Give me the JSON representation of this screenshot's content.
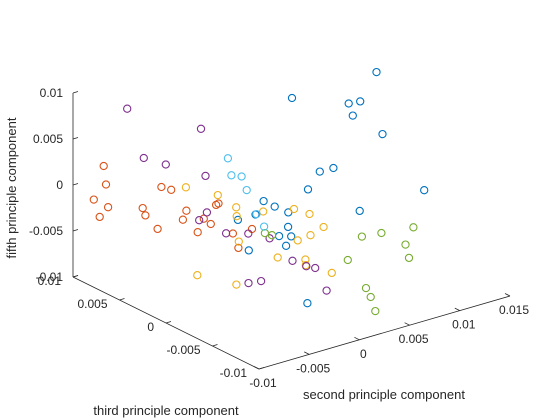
{
  "chart_data": {
    "type": "scatter",
    "projection": "3d",
    "grid": false,
    "xlabel": "second principle component",
    "ylabel": "third principle component",
    "zlabel": "fifth principle component",
    "xlim": [
      -0.01,
      0.015
    ],
    "ylim": [
      -0.01,
      0.01
    ],
    "zlim": [
      -0.01,
      0.01
    ],
    "xticks": [
      -0.01,
      -0.005,
      0,
      0.005,
      0.01,
      0.015
    ],
    "xtick_labels": [
      "-0.01",
      "-0.005",
      "0",
      "0.005",
      "0.01",
      "0.015"
    ],
    "yticks": [
      -0.01,
      -0.005,
      0,
      0.005,
      0.01
    ],
    "ytick_labels": [
      "-0.01",
      "-0.005",
      "0",
      "0.005",
      "0.01"
    ],
    "zticks": [
      -0.01,
      -0.005,
      0,
      0.005,
      0.01
    ],
    "ztick_labels": [
      "-0.01",
      "-0.005",
      "0",
      "0.005",
      "0.01"
    ],
    "marker": "open-circle",
    "colors": [
      "#0072BD",
      "#D95319",
      "#EDB120",
      "#7E2F8E",
      "#77AC30",
      "#4DBEEE"
    ],
    "series": [
      {
        "color": "#0072BD",
        "points": [
          {
            "x": 0.0118,
            "y": 0.0009,
            "z": 0.0099
          },
          {
            "x": 0.0073,
            "y": -0.0022,
            "z": 0.0097
          },
          {
            "x": 0.0069,
            "y": -0.0014,
            "z": 0.0092
          },
          {
            "x": 0.0045,
            "y": 0.0021,
            "z": 0.0088
          },
          {
            "x": 0.0062,
            "y": -0.0026,
            "z": 0.0087
          },
          {
            "x": 0.0098,
            "y": -0.0019,
            "z": 0.0052
          },
          {
            "x": 0.0031,
            "y": -0.0024,
            "z": 0.0035
          },
          {
            "x": 0.0051,
            "y": -0.0017,
            "z": 0.0029
          },
          {
            "x": 0.0022,
            "y": -0.0021,
            "z": 0.0017
          },
          {
            "x": 0.0109,
            "y": -0.0052,
            "z": 0.0004
          },
          {
            "x": 0.0054,
            "y": -0.0042,
            "z": -0.0006
          },
          {
            "x": 0.0012,
            "y": 0.0016,
            "z": -0.0011
          },
          {
            "x": 0.0012,
            "y": 0.0004,
            "z": -0.0011
          },
          {
            "x": 0.0019,
            "y": -0.0003,
            "z": -0.0016
          },
          {
            "x": -0.0009,
            "y": 0.0002,
            "z": -0.0012
          },
          {
            "x": 0.0004,
            "y": -0.0019,
            "z": -0.0019
          },
          {
            "x": -0.0021,
            "y": 0.0008,
            "z": -0.0017
          },
          {
            "x": -0.0004,
            "y": -0.0018,
            "z": -0.0027
          },
          {
            "x": 0.0009,
            "y": -0.0017,
            "z": -0.0032
          },
          {
            "x": 0.0002,
            "y": -0.0019,
            "z": -0.0039
          },
          {
            "x": -0.0012,
            "y": 0.0006,
            "z": -0.0052
          },
          {
            "x": 0.0001,
            "y": -0.0043,
            "z": -0.0089
          }
        ]
      },
      {
        "color": "#D95319",
        "points": [
          {
            "x": -0.0087,
            "y": 0.0081,
            "z": 0.0026
          },
          {
            "x": -0.0081,
            "y": 0.0085,
            "z": 0.0002
          },
          {
            "x": -0.0061,
            "y": 0.0047,
            "z": 0.0012
          },
          {
            "x": -0.0055,
            "y": 0.0043,
            "z": 0.0009
          },
          {
            "x": -0.0095,
            "y": 0.0083,
            "z": -0.0009
          },
          {
            "x": -0.0091,
            "y": 0.0072,
            "z": -0.0013
          },
          {
            "x": -0.0091,
            "y": 0.0081,
            "z": -0.0028
          },
          {
            "x": -0.0075,
            "y": 0.0052,
            "z": -0.0009
          },
          {
            "x": -0.0064,
            "y": 0.0061,
            "z": -0.0025
          },
          {
            "x": -0.0063,
            "y": 0.0049,
            "z": -0.0034
          },
          {
            "x": -0.0051,
            "y": 0.0031,
            "z": -0.0009
          },
          {
            "x": -0.0047,
            "y": 0.0039,
            "z": -0.0024
          },
          {
            "x": -0.0042,
            "y": 0.0022,
            "z": -0.0016
          },
          {
            "x": -0.0035,
            "y": 0.0022,
            "z": -0.0024
          },
          {
            "x": -0.0031,
            "y": 0.0018,
            "z": -0.0001
          },
          {
            "x": -0.0039,
            "y": 0.0012,
            "z": 0.0003
          },
          {
            "x": -0.0025,
            "y": 0.0009,
            "z": -0.0031
          },
          {
            "x": -0.0027,
            "y": 0.0001,
            "z": -0.0042
          },
          {
            "x": -0.0049,
            "y": 0.0021,
            "z": -0.0028
          },
          {
            "x": -0.0019,
            "y": -0.0005,
            "z": -0.0021
          }
        ]
      },
      {
        "color": "#EDB120",
        "points": [
          {
            "x": -0.0045,
            "y": 0.0038,
            "z": 0.0011
          },
          {
            "x": -0.0029,
            "y": 0.0021,
            "z": 0.0006
          },
          {
            "x": -0.0024,
            "y": 0.0006,
            "z": -0.0011
          },
          {
            "x": -0.0019,
            "y": 0.0012,
            "z": -0.0006
          },
          {
            "x": -0.0005,
            "y": -0.0002,
            "z": -0.0008
          },
          {
            "x": 0.0021,
            "y": -0.0007,
            "z": -0.0011
          },
          {
            "x": 0.0029,
            "y": -0.0015,
            "z": -0.0015
          },
          {
            "x": 0.0018,
            "y": -0.0028,
            "z": -0.0028
          },
          {
            "x": 0.0032,
            "y": -0.0027,
            "z": -0.0024
          },
          {
            "x": 0.0008,
            "y": -0.0025,
            "z": -0.0032
          },
          {
            "x": 0.0012,
            "y": -0.0029,
            "z": -0.0052
          },
          {
            "x": -0.0011,
            "y": -0.0024,
            "z": -0.0045
          },
          {
            "x": 0.0005,
            "y": -0.0037,
            "z": -0.0052
          },
          {
            "x": -0.0034,
            "y": -0.0007,
            "z": -0.0029
          },
          {
            "x": -0.0041,
            "y": -0.0012,
            "z": -0.0071
          },
          {
            "x": 0.0029,
            "y": -0.0039,
            "z": -0.0067
          },
          {
            "x": -0.0042,
            "y": 0.0029,
            "z": -0.0081
          }
        ]
      },
      {
        "color": "#7E2F8E",
        "points": [
          {
            "x": -0.0072,
            "y": 0.0072,
            "z": 0.0088
          },
          {
            "x": -0.0029,
            "y": 0.0039,
            "z": 0.0069
          },
          {
            "x": -0.0061,
            "y": 0.0066,
            "z": 0.0034
          },
          {
            "x": -0.0052,
            "y": 0.0052,
            "z": 0.0031
          },
          {
            "x": -0.0031,
            "y": 0.0032,
            "z": 0.0022
          },
          {
            "x": -0.0038,
            "y": 0.0023,
            "z": -0.0011
          },
          {
            "x": -0.0041,
            "y": 0.0028,
            "z": -0.0021
          },
          {
            "x": -0.0029,
            "y": 0.0012,
            "z": -0.0031
          },
          {
            "x": -0.0019,
            "y": -0.0001,
            "z": -0.0028
          },
          {
            "x": -0.0007,
            "y": -0.0011,
            "z": -0.0032
          },
          {
            "x": 0.0001,
            "y": -0.0027,
            "z": -0.0051
          },
          {
            "x": 0.0011,
            "y": -0.0031,
            "z": -0.0058
          },
          {
            "x": 0.0019,
            "y": -0.0032,
            "z": -0.0062
          },
          {
            "x": -0.0028,
            "y": -0.0011,
            "z": -0.0074
          },
          {
            "x": -0.0021,
            "y": -0.0017,
            "z": -0.0071
          },
          {
            "x": 0.0022,
            "y": -0.0041,
            "z": -0.0083
          }
        ]
      },
      {
        "color": "#77AC30",
        "points": [
          {
            "x": 0.0089,
            "y": -0.0062,
            "z": -0.0025
          },
          {
            "x": 0.0071,
            "y": -0.0047,
            "z": -0.0033
          },
          {
            "x": 0.0059,
            "y": -0.0039,
            "z": -0.0037
          },
          {
            "x": 0.0082,
            "y": -0.0061,
            "z": -0.0042
          },
          {
            "x": 0.0045,
            "y": -0.0039,
            "z": -0.0058
          },
          {
            "x": 0.0079,
            "y": -0.0068,
            "z": -0.0052
          },
          {
            "x": 0.0051,
            "y": -0.0052,
            "z": -0.0084
          },
          {
            "x": 0.0052,
            "y": -0.0056,
            "z": -0.0092
          },
          {
            "x": 0.0051,
            "y": -0.0062,
            "z": -0.0104
          },
          {
            "x": -0.0012,
            "y": -0.0019,
            "z": -0.0023
          },
          {
            "x": -0.0008,
            "y": -0.0007,
            "z": -0.0028
          }
        ]
      },
      {
        "color": "#4DBEEE",
        "points": [
          {
            "x": -0.0018,
            "y": 0.0022,
            "z": 0.0042
          },
          {
            "x": -0.0021,
            "y": 0.0015,
            "z": 0.0028
          },
          {
            "x": -0.0008,
            "y": 0.0018,
            "z": 0.0021
          },
          {
            "x": -0.0015,
            "y": 0.0005,
            "z": 0.0015
          },
          {
            "x": -0.0009,
            "y": 0.0001,
            "z": -0.0011
          },
          {
            "x": -0.0006,
            "y": -0.0004,
            "z": -0.0023
          }
        ]
      }
    ]
  }
}
